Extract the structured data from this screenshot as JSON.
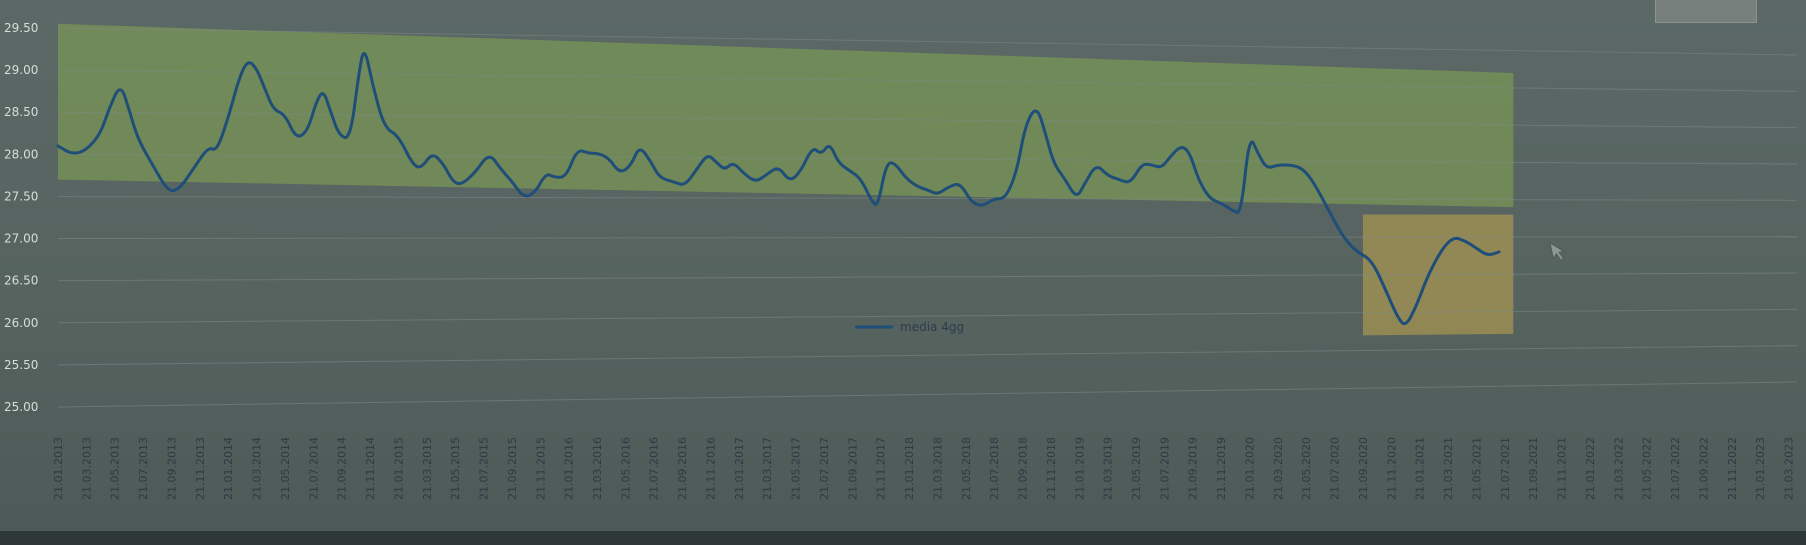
{
  "chart_data": {
    "type": "line",
    "title": "",
    "xlabel": "",
    "ylabel": "",
    "ylim": [
      25.0,
      29.5
    ],
    "yticks": [
      "29.50",
      "29.00",
      "28.50",
      "28.00",
      "27.50",
      "27.00",
      "26.50",
      "26.00",
      "25.50",
      "25.00"
    ],
    "categories": [
      "21.01.2013",
      "21.03.2013",
      "21.05.2013",
      "21.07.2013",
      "21.09.2013",
      "21.11.2013",
      "21.01.2014",
      "21.03.2014",
      "21.05.2014",
      "21.07.2014",
      "21.09.2014",
      "21.11.2014",
      "21.01.2015",
      "21.03.2015",
      "21.05.2015",
      "21.07.2015",
      "21.09.2015",
      "21.11.2015",
      "21.01.2016",
      "21.03.2016",
      "21.05.2016",
      "21.07.2016",
      "21.09.2016",
      "21.11.2016",
      "21.01.2017",
      "21.03.2017",
      "21.05.2017",
      "21.07.2017",
      "21.09.2017",
      "21.11.2017",
      "21.01.2018",
      "21.03.2018",
      "21.05.2018",
      "21.07.2018",
      "21.09.2018",
      "21.11.2018",
      "21.01.2019",
      "21.03.2019",
      "21.05.2019",
      "21.07.2019",
      "21.09.2019",
      "21.11.2019",
      "21.01.2020",
      "21.03.2020",
      "21.05.2020",
      "21.07.2020",
      "21.09.2020",
      "21.11.2020",
      "21.01.2021",
      "21.03.2021",
      "21.05.2021",
      "21.07.2021",
      "21.09.2021",
      "21.11.2021",
      "21.01.2022",
      "21.03.2022",
      "21.05.2022",
      "21.07.2022",
      "21.09.2022",
      "21.11.2022",
      "21.01.2023",
      "21.03.2023"
    ],
    "series": [
      {
        "name": "media 4gg",
        "color": "#1f4e79",
        "points": [
          [
            0,
            28.1
          ],
          [
            0.5,
            28.0
          ],
          [
            1,
            28.05
          ],
          [
            1.5,
            28.25
          ],
          [
            1.8,
            28.55
          ],
          [
            2.2,
            28.85
          ],
          [
            2.5,
            28.55
          ],
          [
            2.8,
            28.2
          ],
          [
            3.3,
            27.9
          ],
          [
            3.9,
            27.55
          ],
          [
            4.3,
            27.6
          ],
          [
            4.8,
            27.85
          ],
          [
            5.3,
            28.1
          ],
          [
            5.6,
            28.05
          ],
          [
            6.0,
            28.45
          ],
          [
            6.4,
            28.95
          ],
          [
            6.7,
            29.15
          ],
          [
            7.0,
            29.05
          ],
          [
            7.3,
            28.8
          ],
          [
            7.6,
            28.55
          ],
          [
            8.0,
            28.5
          ],
          [
            8.4,
            28.2
          ],
          [
            8.8,
            28.3
          ],
          [
            9.1,
            28.65
          ],
          [
            9.35,
            28.8
          ],
          [
            9.6,
            28.55
          ],
          [
            9.9,
            28.25
          ],
          [
            10.3,
            28.2
          ],
          [
            10.6,
            29.0
          ],
          [
            10.8,
            29.35
          ],
          [
            11.1,
            28.85
          ],
          [
            11.5,
            28.35
          ],
          [
            12.0,
            28.25
          ],
          [
            12.5,
            27.9
          ],
          [
            12.8,
            27.85
          ],
          [
            13.2,
            28.05
          ],
          [
            13.6,
            27.9
          ],
          [
            13.9,
            27.7
          ],
          [
            14.2,
            27.65
          ],
          [
            14.7,
            27.8
          ],
          [
            15.2,
            28.05
          ],
          [
            15.6,
            27.85
          ],
          [
            16.0,
            27.7
          ],
          [
            16.4,
            27.5
          ],
          [
            16.8,
            27.55
          ],
          [
            17.2,
            27.8
          ],
          [
            17.5,
            27.75
          ],
          [
            17.9,
            27.75
          ],
          [
            18.3,
            28.1
          ],
          [
            18.7,
            28.05
          ],
          [
            19.0,
            28.05
          ],
          [
            19.4,
            28.0
          ],
          [
            19.8,
            27.8
          ],
          [
            20.2,
            27.9
          ],
          [
            20.5,
            28.15
          ],
          [
            20.9,
            27.95
          ],
          [
            21.2,
            27.75
          ],
          [
            21.7,
            27.7
          ],
          [
            22.1,
            27.65
          ],
          [
            22.5,
            27.85
          ],
          [
            22.9,
            28.05
          ],
          [
            23.2,
            27.95
          ],
          [
            23.5,
            27.85
          ],
          [
            23.8,
            27.95
          ],
          [
            24.2,
            27.8
          ],
          [
            24.6,
            27.7
          ],
          [
            25.0,
            27.8
          ],
          [
            25.4,
            27.9
          ],
          [
            25.8,
            27.7
          ],
          [
            26.2,
            27.85
          ],
          [
            26.6,
            28.15
          ],
          [
            26.9,
            28.05
          ],
          [
            27.2,
            28.2
          ],
          [
            27.5,
            27.95
          ],
          [
            27.9,
            27.85
          ],
          [
            28.3,
            27.75
          ],
          [
            28.7,
            27.45
          ],
          [
            28.9,
            27.4
          ],
          [
            29.2,
            27.95
          ],
          [
            29.5,
            27.95
          ],
          [
            29.9,
            27.75
          ],
          [
            30.3,
            27.65
          ],
          [
            30.7,
            27.6
          ],
          [
            31.0,
            27.55
          ],
          [
            31.4,
            27.65
          ],
          [
            31.8,
            27.7
          ],
          [
            32.2,
            27.45
          ],
          [
            32.6,
            27.4
          ],
          [
            33.0,
            27.5
          ],
          [
            33.4,
            27.5
          ],
          [
            33.8,
            27.85
          ],
          [
            34.1,
            28.45
          ],
          [
            34.5,
            28.7
          ],
          [
            34.8,
            28.35
          ],
          [
            35.1,
            27.95
          ],
          [
            35.5,
            27.75
          ],
          [
            35.9,
            27.5
          ],
          [
            36.2,
            27.7
          ],
          [
            36.6,
            27.95
          ],
          [
            37.0,
            27.8
          ],
          [
            37.4,
            27.75
          ],
          [
            37.8,
            27.7
          ],
          [
            38.2,
            27.95
          ],
          [
            38.5,
            27.95
          ],
          [
            38.9,
            27.9
          ],
          [
            39.2,
            28.05
          ],
          [
            39.6,
            28.2
          ],
          [
            39.9,
            28.1
          ],
          [
            40.2,
            27.75
          ],
          [
            40.6,
            27.5
          ],
          [
            41.0,
            27.45
          ],
          [
            41.4,
            27.35
          ],
          [
            41.7,
            27.3
          ],
          [
            42.0,
            28.35
          ],
          [
            42.3,
            28.1
          ],
          [
            42.6,
            27.9
          ],
          [
            43.0,
            27.95
          ],
          [
            43.5,
            27.95
          ],
          [
            43.9,
            27.9
          ],
          [
            44.3,
            27.7
          ],
          [
            44.8,
            27.35
          ],
          [
            45.3,
            27.0
          ],
          [
            45.8,
            26.8
          ],
          [
            46.3,
            26.7
          ],
          [
            46.8,
            26.3
          ],
          [
            47.2,
            25.95
          ],
          [
            47.5,
            25.8
          ],
          [
            47.9,
            26.1
          ],
          [
            48.3,
            26.5
          ],
          [
            48.8,
            26.85
          ],
          [
            49.2,
            27.0
          ],
          [
            49.6,
            26.95
          ],
          [
            50.0,
            26.85
          ],
          [
            50.4,
            26.75
          ],
          [
            50.8,
            26.8
          ]
        ]
      }
    ],
    "bands": [
      {
        "label": "",
        "color": "#7a9656",
        "x_from": 0,
        "x_to": 51.3,
        "y_from_left": 27.7,
        "y_to_left": 29.55,
        "y_from_right": 27.4,
        "y_to_right": 29.2
      },
      {
        "label": "",
        "color": "#a59452",
        "x_from": 46.0,
        "x_to": 51.3,
        "y_from_left": 25.7,
        "y_to_left": 27.3,
        "y_from_right": 25.7,
        "y_to_right": 27.3
      }
    ],
    "legend": {
      "position": "center",
      "labels": [
        "media 4gg"
      ]
    },
    "grid": true
  }
}
